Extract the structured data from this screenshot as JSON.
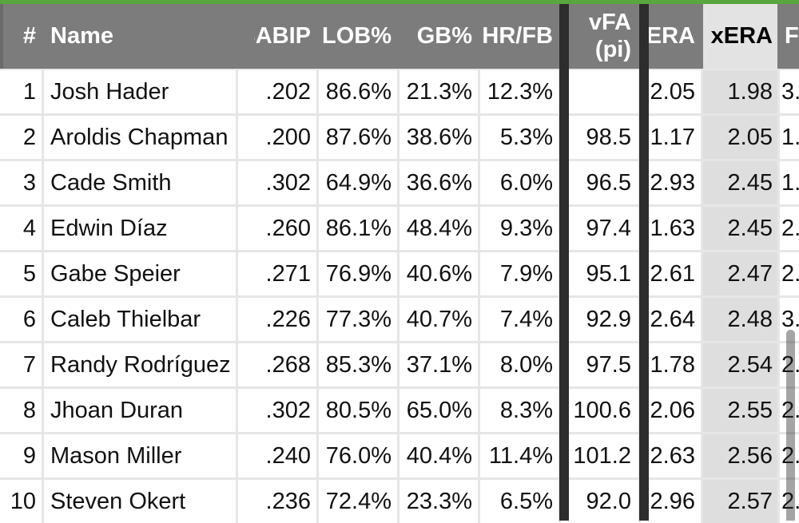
{
  "colors": {
    "accent_green": "#58a63c",
    "header_gray": "#7c7c7c",
    "sorted_column_highlight": "#dedede",
    "divider_bar": "#2d2d2d"
  },
  "table": {
    "sorted_column": "xERA",
    "columns": [
      {
        "key": "rank",
        "label": "#"
      },
      {
        "key": "name",
        "label": "Name"
      },
      {
        "key": "babip",
        "label": "BABIP"
      },
      {
        "key": "lob",
        "label": "LOB%"
      },
      {
        "key": "gb",
        "label": "GB%"
      },
      {
        "key": "hrfb",
        "label": "HR/FB"
      },
      {
        "key": "vfa",
        "label": "vFA (pi)"
      },
      {
        "key": "era",
        "label": "ERA"
      },
      {
        "key": "xera",
        "label": "xERA"
      },
      {
        "key": "fip",
        "label": "F"
      }
    ],
    "rows": [
      {
        "rank": "1",
        "name": "Josh Hader",
        "babip": ".202",
        "lob": "86.6%",
        "gb": "21.3%",
        "hrfb": "12.3%",
        "vfa": "",
        "era": "2.05",
        "xera": "1.98",
        "fip": "3."
      },
      {
        "rank": "2",
        "name": "Aroldis Chapman",
        "babip": ".200",
        "lob": "87.6%",
        "gb": "38.6%",
        "hrfb": "5.3%",
        "vfa": "98.5",
        "era": "1.17",
        "xera": "2.05",
        "fip": "1."
      },
      {
        "rank": "3",
        "name": "Cade Smith",
        "babip": ".302",
        "lob": "64.9%",
        "gb": "36.6%",
        "hrfb": "6.0%",
        "vfa": "96.5",
        "era": "2.93",
        "xera": "2.45",
        "fip": "1."
      },
      {
        "rank": "4",
        "name": "Edwin Díaz",
        "babip": ".260",
        "lob": "86.1%",
        "gb": "48.4%",
        "hrfb": "9.3%",
        "vfa": "97.4",
        "era": "1.63",
        "xera": "2.45",
        "fip": "2."
      },
      {
        "rank": "5",
        "name": "Gabe Speier",
        "babip": ".271",
        "lob": "76.9%",
        "gb": "40.6%",
        "hrfb": "7.9%",
        "vfa": "95.1",
        "era": "2.61",
        "xera": "2.47",
        "fip": "2."
      },
      {
        "rank": "6",
        "name": "Caleb Thielbar",
        "babip": ".226",
        "lob": "77.3%",
        "gb": "40.7%",
        "hrfb": "7.4%",
        "vfa": "92.9",
        "era": "2.64",
        "xera": "2.48",
        "fip": "3."
      },
      {
        "rank": "7",
        "name": "Randy Rodríguez",
        "babip": ".268",
        "lob": "85.3%",
        "gb": "37.1%",
        "hrfb": "8.0%",
        "vfa": "97.5",
        "era": "1.78",
        "xera": "2.54",
        "fip": "2."
      },
      {
        "rank": "8",
        "name": "Jhoan Duran",
        "babip": ".302",
        "lob": "80.5%",
        "gb": "65.0%",
        "hrfb": "8.3%",
        "vfa": "100.6",
        "era": "2.06",
        "xera": "2.55",
        "fip": "2."
      },
      {
        "rank": "9",
        "name": "Mason Miller",
        "babip": ".240",
        "lob": "76.0%",
        "gb": "40.4%",
        "hrfb": "11.4%",
        "vfa": "101.2",
        "era": "2.63",
        "xera": "2.56",
        "fip": "2."
      },
      {
        "rank": "10",
        "name": "Steven Okert",
        "babip": ".236",
        "lob": "72.4%",
        "gb": "23.3%",
        "hrfb": "6.5%",
        "vfa": "92.0",
        "era": "2.96",
        "xera": "2.57",
        "fip": "2."
      }
    ]
  }
}
